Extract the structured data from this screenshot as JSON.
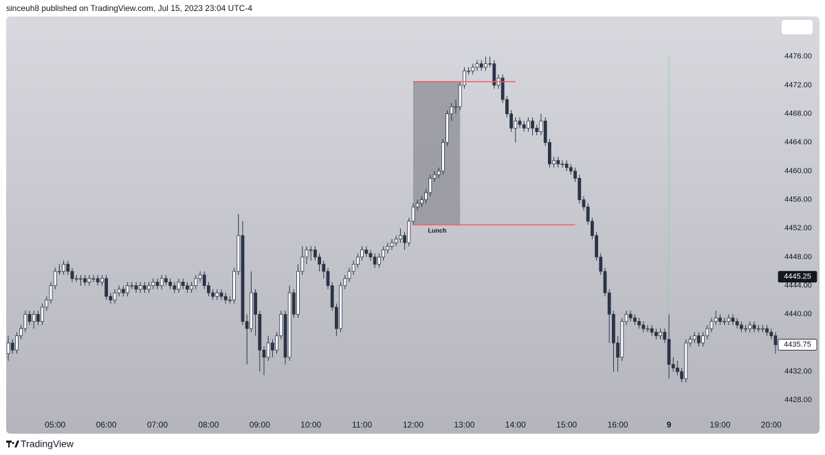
{
  "header": "sinceuh8 published on TradingView.com, Jul 15, 2023 23:04 UTC-4",
  "footer": "TradingView",
  "chart_data": {
    "type": "candlestick",
    "categories": [
      null,
      null,
      null,
      null,
      null,
      null,
      null,
      null,
      null,
      null,
      null,
      "05:00",
      null,
      null,
      null,
      null,
      null,
      null,
      null,
      null,
      null,
      null,
      null,
      "06:00",
      null,
      null,
      null,
      null,
      null,
      null,
      null,
      null,
      null,
      null,
      null,
      "07:00",
      null,
      null,
      null,
      null,
      null,
      null,
      null,
      null,
      null,
      null,
      null,
      "08:00",
      null,
      null,
      null,
      null,
      null,
      null,
      null,
      null,
      null,
      null,
      null,
      "09:00",
      null,
      null,
      null,
      null,
      null,
      null,
      null,
      null,
      null,
      null,
      null,
      "10:00",
      null,
      null,
      null,
      null,
      null,
      null,
      null,
      null,
      null,
      null,
      null,
      "11:00",
      null,
      null,
      null,
      null,
      null,
      null,
      null,
      null,
      null,
      null,
      null,
      "12:00",
      null,
      null,
      null,
      null,
      null,
      null,
      null,
      null,
      null,
      null,
      null,
      "13:00",
      null,
      null,
      null,
      null,
      null,
      null,
      null,
      null,
      null,
      null,
      null,
      "14:00",
      null,
      null,
      null,
      null,
      null,
      null,
      null,
      null,
      null,
      null,
      null,
      "15:00",
      null,
      null,
      null,
      null,
      null,
      null,
      null,
      null,
      null,
      null,
      null,
      "16:00",
      null,
      null,
      null,
      null,
      null,
      null,
      null,
      null,
      null,
      null,
      null,
      "9",
      null,
      null,
      null,
      null,
      null,
      null,
      null,
      null,
      null,
      null,
      null,
      "19:00",
      null,
      null,
      null,
      null,
      null,
      null,
      null,
      null,
      null,
      null,
      null,
      "20:00",
      null
    ],
    "ohlc": [
      [
        4434.5,
        4437,
        4433.5,
        4436
      ],
      [
        4436,
        4436.5,
        4434.5,
        4435
      ],
      [
        4435,
        4437.5,
        4434.5,
        4437
      ],
      [
        4437,
        4438.5,
        4436.5,
        4438
      ],
      [
        4438,
        4440.5,
        4437.5,
        4440
      ],
      [
        4440,
        4440.5,
        4438.5,
        4439
      ],
      [
        4439,
        4440.5,
        4438,
        4440
      ],
      [
        4440,
        4440.5,
        4438.5,
        4439
      ],
      [
        4439,
        4441.5,
        4438.5,
        4441
      ],
      [
        4441,
        4442.5,
        4440.5,
        4442
      ],
      [
        4442,
        4444.5,
        4441.5,
        4444
      ],
      [
        4444,
        4446.5,
        4443.5,
        4446
      ],
      [
        4446,
        4447,
        4445.5,
        4446
      ],
      [
        4446,
        4447.5,
        4445.5,
        4447
      ],
      [
        4447,
        4447.5,
        4445.5,
        4446
      ],
      [
        4446,
        4446.5,
        4444.5,
        4445
      ],
      [
        4445,
        4445.5,
        4444.5,
        4445
      ],
      [
        4445,
        4445.5,
        4444,
        4445
      ],
      [
        4445,
        4445.5,
        4444,
        4444.5
      ],
      [
        4444.5,
        4445.5,
        4444,
        4445
      ],
      [
        4445,
        4445.5,
        4444.5,
        4445
      ],
      [
        4445,
        4445.5,
        4444,
        4444.5
      ],
      [
        4444.5,
        4445.5,
        4444,
        4445
      ],
      [
        4445,
        4445.5,
        4442,
        4442.5
      ],
      [
        4442.5,
        4443,
        4441.5,
        4442
      ],
      [
        4442,
        4443.5,
        4441.5,
        4443
      ],
      [
        4443,
        4444,
        4442.5,
        4443.5
      ],
      [
        4443.5,
        4444,
        4442.5,
        4443
      ],
      [
        4443,
        4444.5,
        4442.5,
        4444
      ],
      [
        4444,
        4444.5,
        4443.5,
        4444
      ],
      [
        4444,
        4444.5,
        4443,
        4443.5
      ],
      [
        4443.5,
        4444.5,
        4443,
        4444
      ],
      [
        4444,
        4444.5,
        4443,
        4443.5
      ],
      [
        4443.5,
        4444.5,
        4443,
        4444
      ],
      [
        4444,
        4445,
        4443.5,
        4444.5
      ],
      [
        4444.5,
        4445,
        4443.5,
        4444
      ],
      [
        4444,
        4445.5,
        4443.5,
        4445
      ],
      [
        4445,
        4445.5,
        4444,
        4444.5
      ],
      [
        4444.5,
        4445,
        4443.5,
        4444
      ],
      [
        4444,
        4444.5,
        4443,
        4443.5
      ],
      [
        4443.5,
        4445,
        4443,
        4444.5
      ],
      [
        4444.5,
        4445,
        4443.5,
        4444
      ],
      [
        4444,
        4444.5,
        4443,
        4443.5
      ],
      [
        4443.5,
        4444.5,
        4443,
        4444
      ],
      [
        4444,
        4445.5,
        4443.5,
        4445
      ],
      [
        4445,
        4446,
        4444.5,
        4445.5
      ],
      [
        4445.5,
        4446,
        4443.5,
        4444
      ],
      [
        4444,
        4444.5,
        4442.5,
        4443
      ],
      [
        4443,
        4443.5,
        4442,
        4442.5
      ],
      [
        4442.5,
        4443.5,
        4442,
        4443
      ],
      [
        4443,
        4443.5,
        4442,
        4442.5
      ],
      [
        4442.5,
        4443,
        4441.5,
        4442
      ],
      [
        4442,
        4442.5,
        4441.5,
        4442
      ],
      [
        4442,
        4446.5,
        4441.5,
        4446
      ],
      [
        4446,
        4454,
        4445.5,
        4451
      ],
      [
        4451,
        4453,
        4438.5,
        4439
      ],
      [
        4439,
        4440,
        4433,
        4438
      ],
      [
        4438,
        4446,
        4437.5,
        4443
      ],
      [
        4443,
        4443.5,
        4437,
        4440
      ],
      [
        4440,
        4440.5,
        4432,
        4435
      ],
      [
        4435,
        4435.5,
        4431.5,
        4434
      ],
      [
        4434,
        4437,
        4433.5,
        4436
      ],
      [
        4436,
        4436.5,
        4434,
        4435
      ],
      [
        4435,
        4437.5,
        4434.5,
        4437
      ],
      [
        4437,
        4440.5,
        4436.5,
        4440
      ],
      [
        4440,
        4440.5,
        4433,
        4434
      ],
      [
        4434,
        4444,
        4433.5,
        4443
      ],
      [
        4443,
        4443.5,
        4439.5,
        4440
      ],
      [
        4440,
        4447,
        4439.5,
        4446
      ],
      [
        4446,
        4449.5,
        4445.5,
        4448
      ],
      [
        4448,
        4449.5,
        4447,
        4449
      ],
      [
        4449,
        4449.5,
        4447.5,
        4449
      ],
      [
        4449,
        4449.5,
        4447.5,
        4448
      ],
      [
        4448,
        4448.5,
        4446,
        4447
      ],
      [
        4447,
        4447.5,
        4445,
        4446
      ],
      [
        4446,
        4446.5,
        4443.5,
        4444
      ],
      [
        4444,
        4444.5,
        4440.5,
        4441
      ],
      [
        4441,
        4441.5,
        4437,
        4438
      ],
      [
        4438,
        4444.5,
        4437.5,
        4444
      ],
      [
        4444,
        4445.5,
        4443.5,
        4445
      ],
      [
        4445,
        4446.5,
        4444.5,
        4446
      ],
      [
        4446,
        4447.5,
        4445.5,
        4447
      ],
      [
        4447,
        4448.5,
        4446.5,
        4448
      ],
      [
        4448,
        4449.5,
        4447.5,
        4449
      ],
      [
        4449,
        4449.5,
        4448,
        4448.5
      ],
      [
        4448.5,
        4449,
        4447.5,
        4448
      ],
      [
        4448,
        4448.5,
        4446.5,
        4447
      ],
      [
        4447,
        4448.5,
        4446.5,
        4448
      ],
      [
        4448,
        4449.5,
        4447.5,
        4449
      ],
      [
        4449,
        4450,
        4448.5,
        4449.5
      ],
      [
        4449.5,
        4450.5,
        4449,
        4450
      ],
      [
        4450,
        4451,
        4449.5,
        4450.5
      ],
      [
        4450.5,
        4452,
        4450,
        4451
      ],
      [
        4451,
        4451.5,
        4449,
        4450
      ],
      [
        4450,
        4453.5,
        4449.5,
        4453
      ],
      [
        4453,
        4455.5,
        4452.5,
        4455
      ],
      [
        4455,
        4456,
        4454.5,
        4455.5
      ],
      [
        4455.5,
        4456.5,
        4455,
        4456
      ],
      [
        4456,
        4457.5,
        4455.5,
        4457
      ],
      [
        4457,
        4459.5,
        4456.5,
        4459
      ],
      [
        4459,
        4460,
        4458.5,
        4459.5
      ],
      [
        4459.5,
        4460.5,
        4459,
        4460
      ],
      [
        4460,
        4464.5,
        4459.5,
        4464
      ],
      [
        4464,
        4468.5,
        4463.5,
        4468
      ],
      [
        4468,
        4469.5,
        4467,
        4469
      ],
      [
        4469,
        4470,
        4468,
        4469
      ],
      [
        4469,
        4472.5,
        4468.5,
        4472
      ],
      [
        4472,
        4474.5,
        4471.5,
        4474
      ],
      [
        4474,
        4474.5,
        4473.5,
        4474
      ],
      [
        4474,
        4475,
        4473.5,
        4474.5
      ],
      [
        4474.5,
        4475.5,
        4474,
        4475
      ],
      [
        4475,
        4475.5,
        4474,
        4474.5
      ],
      [
        4474.5,
        4476,
        4474,
        4475
      ],
      [
        4475,
        4476,
        4474.5,
        4475
      ],
      [
        4475,
        4475.5,
        4471.5,
        4472
      ],
      [
        4472,
        4473.5,
        4471.5,
        4473
      ],
      [
        4473,
        4473.5,
        4469.5,
        4470
      ],
      [
        4470,
        4470.5,
        4467.5,
        4468
      ],
      [
        4468,
        4468.5,
        4465.5,
        4466
      ],
      [
        4466,
        4467.5,
        4464,
        4467
      ],
      [
        4467,
        4467.5,
        4466,
        4466.5
      ],
      [
        4466.5,
        4467,
        4465.5,
        4466
      ],
      [
        4466,
        4467.5,
        4465.5,
        4467
      ],
      [
        4467,
        4467.5,
        4465,
        4466
      ],
      [
        4466,
        4466.5,
        4465,
        4465.5
      ],
      [
        4465.5,
        4468,
        4465,
        4467
      ],
      [
        4467,
        4467.5,
        4463.5,
        4464
      ],
      [
        4464,
        4464.5,
        4460.5,
        4461
      ],
      [
        4461,
        4462,
        4460.5,
        4461.5
      ],
      [
        4461.5,
        4462,
        4460.5,
        4461
      ],
      [
        4461,
        4461.5,
        4460.5,
        4461
      ],
      [
        4461,
        4461.5,
        4460,
        4460.5
      ],
      [
        4460.5,
        4461,
        4459.5,
        4460
      ],
      [
        4460,
        4460.5,
        4458.5,
        4459
      ],
      [
        4459,
        4459.5,
        4455.5,
        4456
      ],
      [
        4456,
        4456.5,
        4454.5,
        4455
      ],
      [
        4455,
        4455.5,
        4452.5,
        4453
      ],
      [
        4453,
        4453.5,
        4450.5,
        4451
      ],
      [
        4451,
        4451.5,
        4447.5,
        4448
      ],
      [
        4448,
        4448.5,
        4445.5,
        4446
      ],
      [
        4446,
        4446.5,
        4442.5,
        4443
      ],
      [
        4443,
        4443.5,
        4436,
        4440
      ],
      [
        4440,
        4440.5,
        4432,
        4436
      ],
      [
        4436,
        4437,
        4432,
        4434
      ],
      [
        4434,
        4439.5,
        4433.5,
        4439
      ],
      [
        4439,
        4440.5,
        4438.5,
        4440
      ],
      [
        4440,
        4440.5,
        4439,
        4439.5
      ],
      [
        4439.5,
        4440,
        4438.5,
        4439
      ],
      [
        4439,
        4439.5,
        4438,
        4438.5
      ],
      [
        4438.5,
        4439,
        4437.5,
        4438
      ],
      [
        4438,
        4438.5,
        4437.5,
        4438
      ],
      [
        4438,
        4438.5,
        4437,
        4437.5
      ],
      [
        4437.5,
        4438,
        4436.5,
        4437
      ],
      [
        4437,
        4438,
        4436.5,
        4437.5
      ],
      [
        4437.5,
        4438,
        4436,
        4436.5
      ],
      [
        4436.5,
        4440,
        4431,
        4433
      ],
      [
        4433,
        4434,
        4432,
        4432.5
      ],
      [
        4432.5,
        4433.5,
        4431.5,
        4432
      ],
      [
        4432,
        4432.5,
        4430.5,
        4431
      ],
      [
        4431,
        4436.5,
        4430.5,
        4436
      ],
      [
        4436,
        4437,
        4435.5,
        4436.5
      ],
      [
        4436.5,
        4437.5,
        4436,
        4437
      ],
      [
        4437,
        4437.5,
        4435.5,
        4436
      ],
      [
        4436,
        4437.5,
        4435.5,
        4437
      ],
      [
        4437,
        4438.5,
        4436.5,
        4438
      ],
      [
        4438,
        4439.5,
        4437.5,
        4439
      ],
      [
        4439,
        4440.5,
        4438.5,
        4439.5
      ],
      [
        4439.5,
        4440,
        4438.5,
        4439
      ],
      [
        4439,
        4439.5,
        4438.5,
        4439
      ],
      [
        4439,
        4440,
        4438.5,
        4439.5
      ],
      [
        4439.5,
        4440,
        4438.5,
        4439
      ],
      [
        4439,
        4439.5,
        4438,
        4438.5
      ],
      [
        4438.5,
        4439,
        4437.5,
        4438
      ],
      [
        4438,
        4438.5,
        4437.5,
        4438
      ],
      [
        4438,
        4439,
        4437.5,
        4438.5
      ],
      [
        4438.5,
        4439,
        4437.5,
        4438
      ],
      [
        4438,
        4438.5,
        4437.5,
        4438
      ],
      [
        4438,
        4438.5,
        4437.5,
        4438
      ],
      [
        4438,
        4438.5,
        4437,
        4437.5
      ],
      [
        4437.5,
        4438,
        4436.5,
        4437
      ],
      [
        4437,
        4437.5,
        4434.5,
        4435.75
      ]
    ],
    "up_color": "#ffffff",
    "down_color": "#2a3447",
    "ylim": [
      4426.3,
      4481.5
    ],
    "yticks": [
      {
        "value": 4428,
        "label": "4428.00"
      },
      {
        "value": 4432,
        "label": "4432.00"
      },
      {
        "value": 4436,
        "label": "4436.00"
      },
      {
        "value": 4440,
        "label": "4440.00"
      },
      {
        "value": 4444,
        "label": "4444.00"
      },
      {
        "value": 4448,
        "label": "4448.00"
      },
      {
        "value": 4452,
        "label": "4452.00"
      },
      {
        "value": 4456,
        "label": "4456.00"
      },
      {
        "value": 4460,
        "label": "4460.00"
      },
      {
        "value": 4464,
        "label": "4464.00"
      },
      {
        "value": 4468,
        "label": "4468.00"
      },
      {
        "value": 4472,
        "label": "4472.00"
      },
      {
        "value": 4476,
        "label": "4476.00"
      }
    ],
    "grid": false,
    "highlight": {
      "from": 95,
      "to": 106,
      "low": 4452.5,
      "high": 4472.5,
      "label": "Lunch",
      "color": "#8e8e96"
    },
    "levels": [
      {
        "value": 4472.5,
        "from": 95,
        "to": 119
      },
      {
        "value": 4452.5,
        "from": 95,
        "to": 133
      }
    ],
    "level_color": "#ef5f6a",
    "session_line": {
      "at": 155,
      "color": "#8fd49a"
    },
    "price_labels": [
      {
        "value": 4445.25,
        "background": "#131722",
        "color": "#ffffff"
      },
      {
        "value": 4435.75,
        "background": "#ffffff",
        "color": "#131722"
      }
    ]
  }
}
